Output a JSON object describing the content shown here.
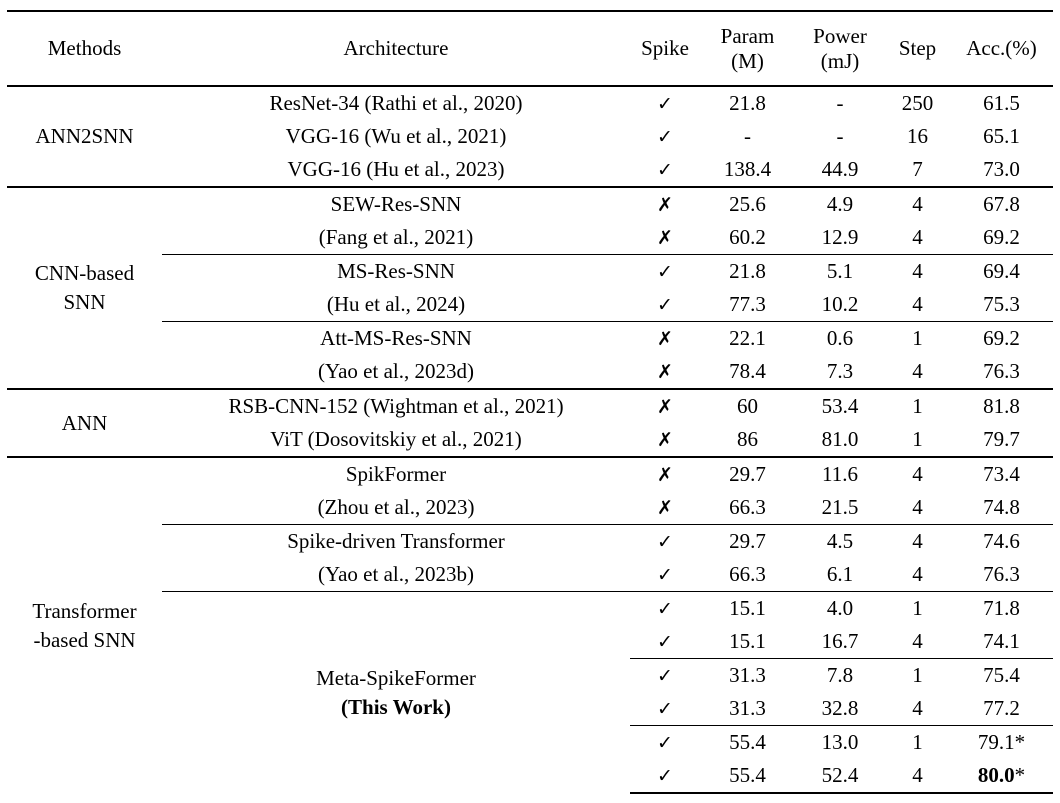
{
  "table": {
    "header": {
      "methods": "Methods",
      "architecture": "Architecture",
      "spike": "Spike",
      "param": "Param\n(M)",
      "power": "Power\n(mJ)",
      "step": "Step",
      "acc": "Acc.(%)"
    },
    "symbols": {
      "yes": "✓",
      "no": "✗"
    },
    "rows": [
      {
        "method": {
          "text": "ANN2SNN",
          "rows": 3
        },
        "arch": {
          "text": "ResNet-34 (Rathi et al., 2020)"
        },
        "spike": "yes",
        "param": "21.8",
        "power": "-",
        "step": "250",
        "acc": {
          "text": "61.5"
        }
      },
      {
        "arch": {
          "text": "VGG-16 (Wu et al., 2021)"
        },
        "spike": "yes",
        "param": "-",
        "power": "-",
        "step": "16",
        "acc": {
          "text": "65.1"
        }
      },
      {
        "arch": {
          "text": "VGG-16 (Hu et al., 2023)"
        },
        "spike": "yes",
        "param": "138.4",
        "power": "44.9",
        "step": "7",
        "acc": {
          "text": "73.0"
        }
      },
      {
        "rule": "full",
        "method": {
          "text": "CNN-based\nSNN",
          "rows": 6
        },
        "arch": {
          "text": "SEW-Res-SNN"
        },
        "spike": "no",
        "param": "25.6",
        "power": "4.9",
        "step": "4",
        "acc": {
          "text": "67.8"
        }
      },
      {
        "arch": {
          "text": "(Fang et al., 2021)"
        },
        "spike": "no",
        "param": "60.2",
        "power": "12.9",
        "step": "4",
        "acc": {
          "text": "69.2"
        }
      },
      {
        "rule": "mid",
        "arch": {
          "text": "MS-Res-SNN"
        },
        "spike": "yes",
        "param": "21.8",
        "power": "5.1",
        "step": "4",
        "acc": {
          "text": "69.4"
        }
      },
      {
        "arch": {
          "text": "(Hu et al., 2024)"
        },
        "spike": "yes",
        "param": "77.3",
        "power": "10.2",
        "step": "4",
        "acc": {
          "text": "75.3"
        }
      },
      {
        "rule": "mid",
        "arch": {
          "text": "Att-MS-Res-SNN"
        },
        "spike": "no",
        "param": "22.1",
        "power": "0.6",
        "step": "1",
        "acc": {
          "text": "69.2"
        }
      },
      {
        "arch": {
          "text": "(Yao et al., 2023d)"
        },
        "spike": "no",
        "param": "78.4",
        "power": "7.3",
        "step": "4",
        "acc": {
          "text": "76.3"
        }
      },
      {
        "rule": "full",
        "method": {
          "text": "ANN",
          "rows": 2
        },
        "arch": {
          "text": "RSB-CNN-152 (Wightman et al., 2021)"
        },
        "spike": "no",
        "param": "60",
        "power": "53.4",
        "step": "1",
        "acc": {
          "text": "81.8"
        }
      },
      {
        "arch": {
          "text": "ViT (Dosovitskiy et al., 2021)"
        },
        "spike": "no",
        "param": "86",
        "power": "81.0",
        "step": "1",
        "acc": {
          "text": "79.7"
        }
      },
      {
        "rule": "full",
        "method": {
          "text": "Transformer\n-based SNN",
          "rows": 10
        },
        "arch": {
          "text": "SpikFormer"
        },
        "spike": "no",
        "param": "29.7",
        "power": "11.6",
        "step": "4",
        "acc": {
          "text": "73.4"
        }
      },
      {
        "arch": {
          "text": "(Zhou et al., 2023)"
        },
        "spike": "no",
        "param": "66.3",
        "power": "21.5",
        "step": "4",
        "acc": {
          "text": "74.8"
        }
      },
      {
        "rule": "mid",
        "arch": {
          "text": "Spike-driven Transformer"
        },
        "spike": "yes",
        "param": "29.7",
        "power": "4.5",
        "step": "4",
        "acc": {
          "text": "74.6"
        }
      },
      {
        "arch": {
          "text": "(Yao et al., 2023b)"
        },
        "spike": "yes",
        "param": "66.3",
        "power": "6.1",
        "step": "4",
        "acc": {
          "text": "76.3"
        }
      },
      {
        "rule": "mid",
        "arch": {
          "text": "Meta-SpikeFormer",
          "bold_line": "(This Work)",
          "rows": 6
        },
        "spike": "yes",
        "param": "15.1",
        "power": "4.0",
        "step": "1",
        "acc": {
          "text": "71.8"
        }
      },
      {
        "spike": "yes",
        "param": "15.1",
        "power": "16.7",
        "step": "4",
        "acc": {
          "text": "74.1"
        }
      },
      {
        "rule": "right",
        "spike": "yes",
        "param": "31.3",
        "power": "7.8",
        "step": "1",
        "acc": {
          "text": "75.4"
        }
      },
      {
        "spike": "yes",
        "param": "31.3",
        "power": "32.8",
        "step": "4",
        "acc": {
          "text": "77.2"
        }
      },
      {
        "rule": "right",
        "spike": "yes",
        "param": "55.4",
        "power": "13.0",
        "step": "1",
        "acc": {
          "text": "79.1",
          "suffix": "*"
        }
      },
      {
        "spike": "yes",
        "param": "55.4",
        "power": "52.4",
        "step": "4",
        "acc": {
          "text": "80.0",
          "bold": true,
          "suffix": "*"
        }
      }
    ]
  }
}
